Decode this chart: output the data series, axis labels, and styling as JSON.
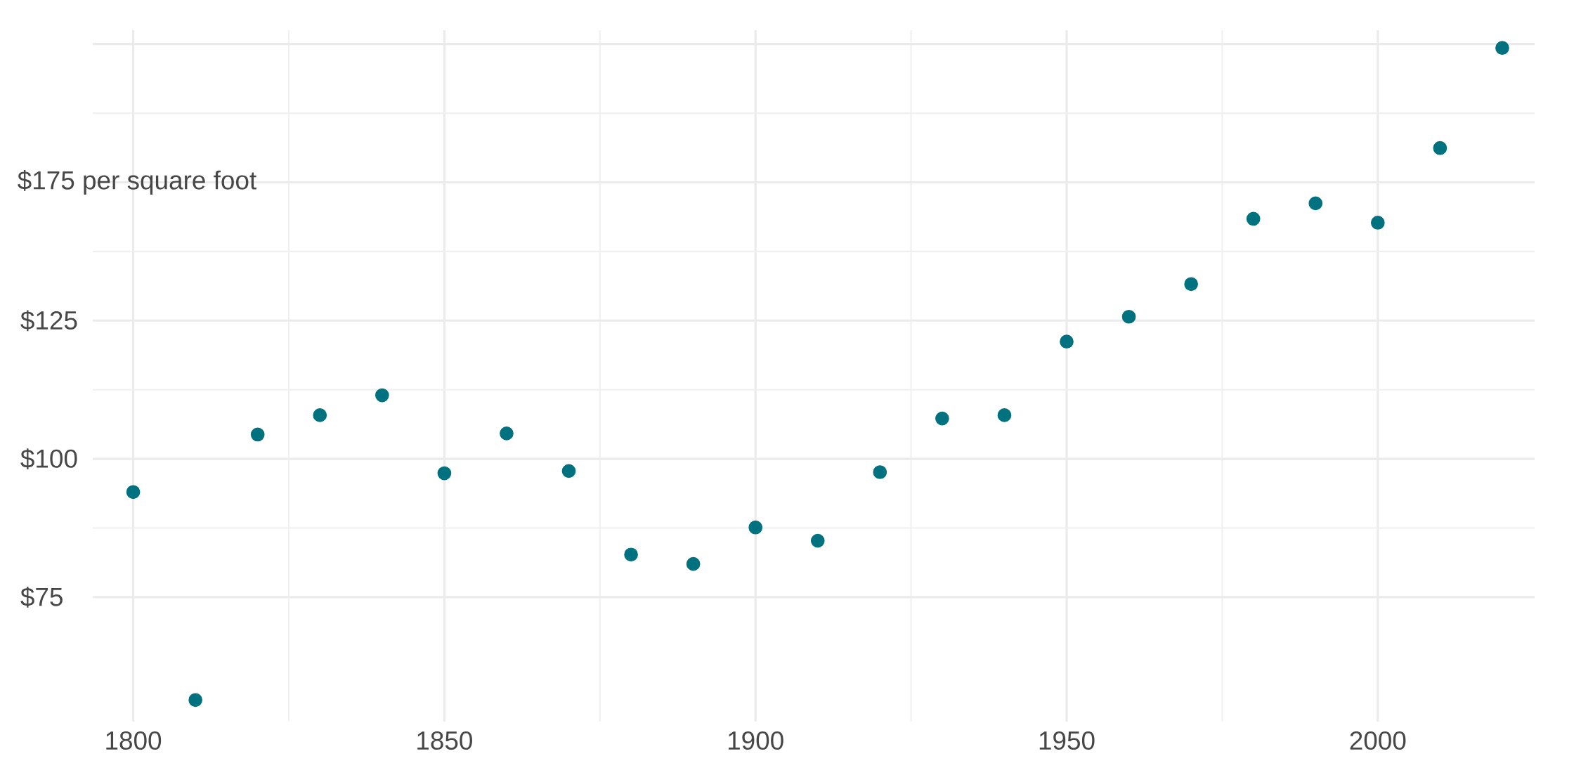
{
  "chart_data": {
    "type": "scatter",
    "x": [
      1800,
      1810,
      1820,
      1830,
      1840,
      1850,
      1860,
      1870,
      1880,
      1890,
      1900,
      1910,
      1920,
      1930,
      1940,
      1950,
      1960,
      1970,
      1980,
      1990,
      2000,
      2010,
      2020
    ],
    "values": [
      94.0,
      56.4,
      104.4,
      107.9,
      111.5,
      97.4,
      104.6,
      97.8,
      82.7,
      81.0,
      87.6,
      85.2,
      97.6,
      107.3,
      107.9,
      121.2,
      125.7,
      131.6,
      143.4,
      146.2,
      142.7,
      156.2,
      174.3
    ],
    "color": "#00727f",
    "grid": true,
    "xlim": [
      1793.5,
      2025.2
    ],
    "xticks": [
      1800,
      1850,
      1900,
      1950,
      2000
    ],
    "ylim": [
      52.5,
      177.5
    ],
    "yticks": [
      {
        "value": 75,
        "label": "$75"
      },
      {
        "value": 100,
        "label": "$100"
      },
      {
        "value": 125,
        "label": "$125"
      },
      {
        "value": 150,
        "label": null
      },
      {
        "value": 175,
        "label": null
      }
    ],
    "annotations": [
      "$175 per square foot"
    ]
  }
}
